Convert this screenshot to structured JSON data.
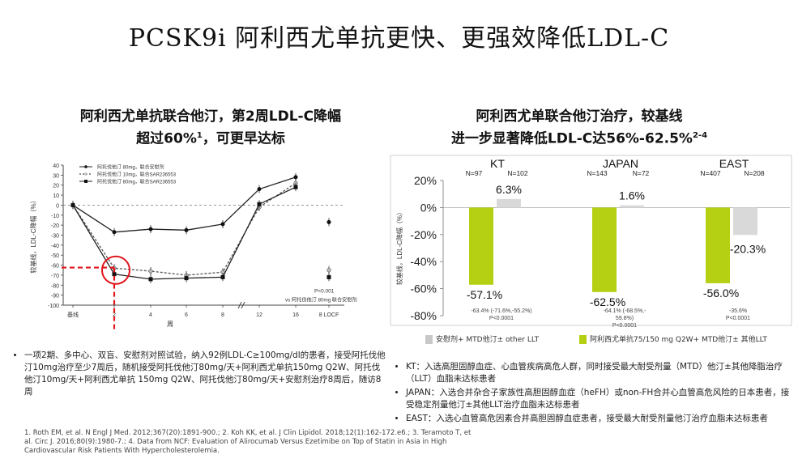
{
  "page_title": "PCSK9i 阿利西尤单抗更快、更强效降低LDL-C",
  "left_panel": {
    "title_line1": "阿利西尤单抗联合他汀，第2周LDL-C降幅",
    "title_line2_main": "超过60%",
    "title_line2_sup": "1",
    "title_line2_tail": "，可更早达标",
    "bullet": "一项2期、多中心、双盲、安慰剂对照试验，纳入92例LDL-C≥100mg/dl的患者，接受阿托伐他汀10mg治疗至少7周后，随机接受阿托伐他汀80mg/天+阿利西尤单抗150mg Q2W、阿托伐他汀10mg/天+阿利西尤单抗 150mg Q2W、阿托伐他汀80mg/天+安慰剂治疗8周后，随访8周"
  },
  "right_panel": {
    "title_line1": "阿利西尤单联合他汀治疗，较基线",
    "title_line2_main": "进一步显著降低LDL-C达56%-62.5%",
    "title_line2_sup": "2-4",
    "bullets": [
      "KT：入选高胆固醇血症、心血管疾病高危人群，同时接受最大耐受剂量（MTD）他汀±其他降脂治疗（LLT）血脂未达标患者",
      "JAPAN：入选合并杂合子家族性高胆固醇血症（heFH）或non-FH合并心血管高危风险的日本患者，接受稳定剂量他汀±其他LLT治疗血脂未达标患者",
      "EAST：入选心血管高危因素合并高胆固醇血症患者，接受最大耐受剂量他汀治疗血脂未达标患者"
    ]
  },
  "references": "1. Roth EM, et al. N Engl J Med. 2012;367(20):1891-900.; 2. Koh KK, et al. J Clin Lipidol. 2018;12(1):162-172.e6.; 3. Teramoto T, et al. Circ J. 2016;80(9):1980-7.; 4. Data from NCF: Evaluation of Alirocumab Versus Ezetimibe on Top of Statin in Asia in High Cardiovascular Risk Patients With Hypercholesterolemia.",
  "chart_data": [
    {
      "type": "line",
      "ylabel": "较基线，LDL-C降幅（%）",
      "xlabel": "周",
      "ylim": [
        -100,
        40
      ],
      "yticks": [
        40,
        30,
        20,
        10,
        0,
        -10,
        -20,
        -30,
        -40,
        -50,
        -60,
        -70,
        -80,
        -90,
        -100
      ],
      "x_tick_labels": [
        "基线",
        "2",
        "4",
        "6",
        "8",
        "12",
        "16",
        "8 LOCF"
      ],
      "series": [
        {
          "name": "阿托伐他汀 80mg，联合安慰剂",
          "style": "solid",
          "values": [
            0,
            -27,
            -24,
            -25,
            -19,
            16,
            28,
            -17
          ]
        },
        {
          "name": "阿托伐他汀 10mg，联合SAR236553",
          "style": "dashed",
          "values": [
            0,
            -63,
            -66,
            -70,
            -67,
            -2,
            22,
            -65
          ]
        },
        {
          "name": "阿托伐他汀 80mg，联合SAR236553",
          "style": "solid-square",
          "values": [
            0,
            -69,
            -74,
            -73,
            -72,
            1,
            18,
            -72
          ]
        }
      ],
      "annotations": [
        "P<0.001",
        "vs 阿托伐他汀 80mg 联合安慰剂"
      ],
      "highlight_x": "2",
      "highlight_y": -60,
      "colors": {
        "line": "#222222",
        "highlight": "#e3141b"
      }
    },
    {
      "type": "bar",
      "ylim": [
        -80,
        20
      ],
      "yticks": [
        "20%",
        "0%",
        "-20%",
        "-40%",
        "-60%",
        "-80%"
      ],
      "groups": [
        {
          "name": "KT",
          "n_left": "N=97",
          "n_right": "N=102",
          "treatment": -57.1,
          "control": 6.3,
          "treatment_label": "-57.1%",
          "control_label": "6.3%",
          "ci": "-63.4% (-71.6%,-55.2%)",
          "p": "P<0.0001"
        },
        {
          "name": "JAPAN",
          "n_left": "N=143",
          "n_right": "N=72",
          "treatment": -62.5,
          "control": 1.6,
          "treatment_label": "-62.5%",
          "control_label": "1.6%",
          "ci_line1": "-64.1% (-68.5%,-",
          "ci_line2": "59.8%)",
          "p": "P<0.0001"
        },
        {
          "name": "EAST",
          "n_left": "N=407",
          "n_right": "N=208",
          "treatment": -56.0,
          "control": -20.3,
          "treatment_label": "-56.0%",
          "control_label": "-20.3%",
          "ci": "-35.6%",
          "p": "P<0.0001"
        }
      ],
      "legend": [
        {
          "name": "安慰剂+ MTD他汀± other LLT",
          "color": "#c8c8c8"
        },
        {
          "name": "阿利西尤单抗75/150 mg Q2W+ MTD他汀± 其他LLT",
          "color": "#b5cf12"
        }
      ],
      "colors": {
        "treatment": "#b5cf12",
        "control": "#d9d9d9"
      }
    }
  ]
}
